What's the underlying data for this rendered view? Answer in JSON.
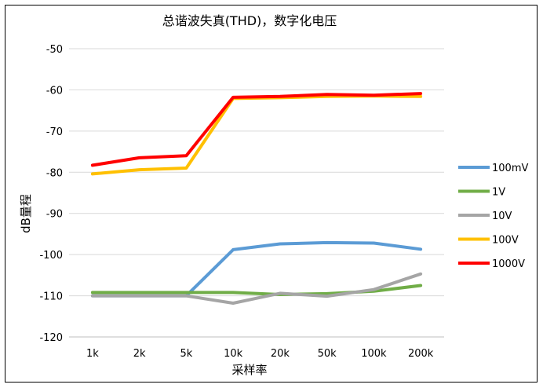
{
  "chart_data": {
    "type": "line",
    "title": "总谐波失真(THD)，数字化电压",
    "xlabel": "采样率",
    "ylabel": "dB量程",
    "categories": [
      "1k",
      "2k",
      "5k",
      "10k",
      "20k",
      "50k",
      "100k",
      "200k"
    ],
    "ylim": [
      -120,
      -50
    ],
    "yticks": [
      -50,
      -60,
      -70,
      -80,
      -90,
      -100,
      -110,
      -120
    ],
    "grid": true,
    "legend_position": "right",
    "series": [
      {
        "name": "100mV",
        "color": "#5b9bd5",
        "values": [
          -110,
          -110,
          -110,
          -98.8,
          -97.4,
          -97.1,
          -97.2,
          -98.7
        ]
      },
      {
        "name": "1V",
        "color": "#70ad47",
        "values": [
          -109.2,
          -109.2,
          -109.2,
          -109.2,
          -109.7,
          -109.5,
          -108.9,
          -107.5
        ]
      },
      {
        "name": "10V",
        "color": "#a5a5a5",
        "values": [
          -110,
          -110,
          -110,
          -111.8,
          -109.4,
          -110.1,
          -108.5,
          -104.7
        ]
      },
      {
        "name": "100V",
        "color": "#ffc000",
        "values": [
          -80.4,
          -79.4,
          -79,
          -62.1,
          -61.9,
          -61.6,
          -61.5,
          -61.6
        ]
      },
      {
        "name": "1000V",
        "color": "#ff0000",
        "values": [
          -78.3,
          -76.5,
          -76,
          -61.8,
          -61.6,
          -61.1,
          -61.3,
          -60.9
        ]
      }
    ]
  }
}
